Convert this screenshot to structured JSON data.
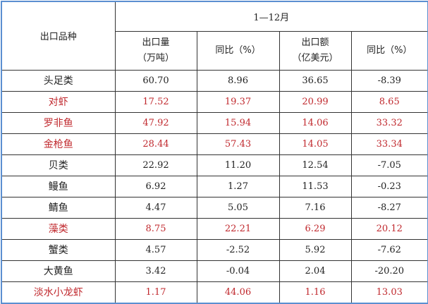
{
  "header": {
    "variety": "出口品种",
    "period": "1—12月",
    "columns": [
      {
        "line1": "出口量",
        "line2": "（万吨）"
      },
      {
        "line1": "同比（%）",
        "line2": ""
      },
      {
        "line1": "出口额",
        "line2": "（亿美元）"
      },
      {
        "line1": "同比（%）",
        "line2": ""
      }
    ]
  },
  "highlight_color": "#c0282d",
  "rows": [
    {
      "name": "头足类",
      "vol": "60.70",
      "vol_yoy": "8.96",
      "val": "36.65",
      "val_yoy": "-8.39",
      "highlight": false
    },
    {
      "name": "对虾",
      "vol": "17.52",
      "vol_yoy": "19.37",
      "val": "20.99",
      "val_yoy": "8.65",
      "highlight": true
    },
    {
      "name": "罗非鱼",
      "vol": "47.92",
      "vol_yoy": "15.94",
      "val": "14.06",
      "val_yoy": "33.32",
      "highlight": true
    },
    {
      "name": "金枪鱼",
      "vol": "28.44",
      "vol_yoy": "57.43",
      "val": "14.05",
      "val_yoy": "33.34",
      "highlight": true
    },
    {
      "name": "贝类",
      "vol": "22.92",
      "vol_yoy": "11.20",
      "val": "12.54",
      "val_yoy": "-7.05",
      "highlight": false
    },
    {
      "name": "鳗鱼",
      "vol": "6.92",
      "vol_yoy": "1.27",
      "val": "11.53",
      "val_yoy": "-0.23",
      "highlight": false
    },
    {
      "name": "鲭鱼",
      "vol": "4.47",
      "vol_yoy": "5.05",
      "val": "7.16",
      "val_yoy": "-8.27",
      "highlight": false
    },
    {
      "name": "藻类",
      "vol": "8.75",
      "vol_yoy": "22.21",
      "val": "6.29",
      "val_yoy": "20.12",
      "highlight": true
    },
    {
      "name": "蟹类",
      "vol": "4.57",
      "vol_yoy": "-2.52",
      "val": "5.92",
      "val_yoy": "-7.62",
      "highlight": false
    },
    {
      "name": "大黄鱼",
      "vol": "3.42",
      "vol_yoy": "-0.04",
      "val": "2.04",
      "val_yoy": "-20.20",
      "highlight": false
    },
    {
      "name": "淡水小龙虾",
      "vol": "1.17",
      "vol_yoy": "44.06",
      "val": "1.16",
      "val_yoy": "13.03",
      "highlight": true
    }
  ]
}
